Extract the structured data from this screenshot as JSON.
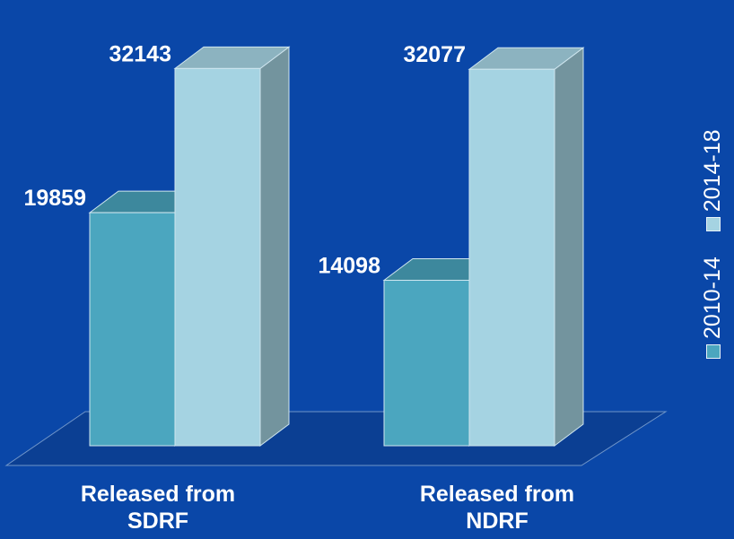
{
  "chart_data": {
    "type": "bar",
    "categories": [
      [
        "Released from",
        "SDRF"
      ],
      [
        "Released from",
        "NDRF"
      ]
    ],
    "series": [
      {
        "name": "2010-14",
        "values": [
          19859,
          14098
        ],
        "color": "#4ba6bf"
      },
      {
        "name": "2014-18",
        "values": [
          32143,
          32077
        ],
        "color": "#a5d3e2"
      }
    ],
    "data_labels": [
      "19859",
      "14098",
      "32143",
      "32077"
    ],
    "ylim": [
      0,
      35000
    ],
    "grid": false,
    "legend_position": "right, vertical",
    "three_d": true
  },
  "colors": {
    "background": "#0a47a8",
    "floor": "#0b3f93",
    "text": "#ffffff"
  }
}
